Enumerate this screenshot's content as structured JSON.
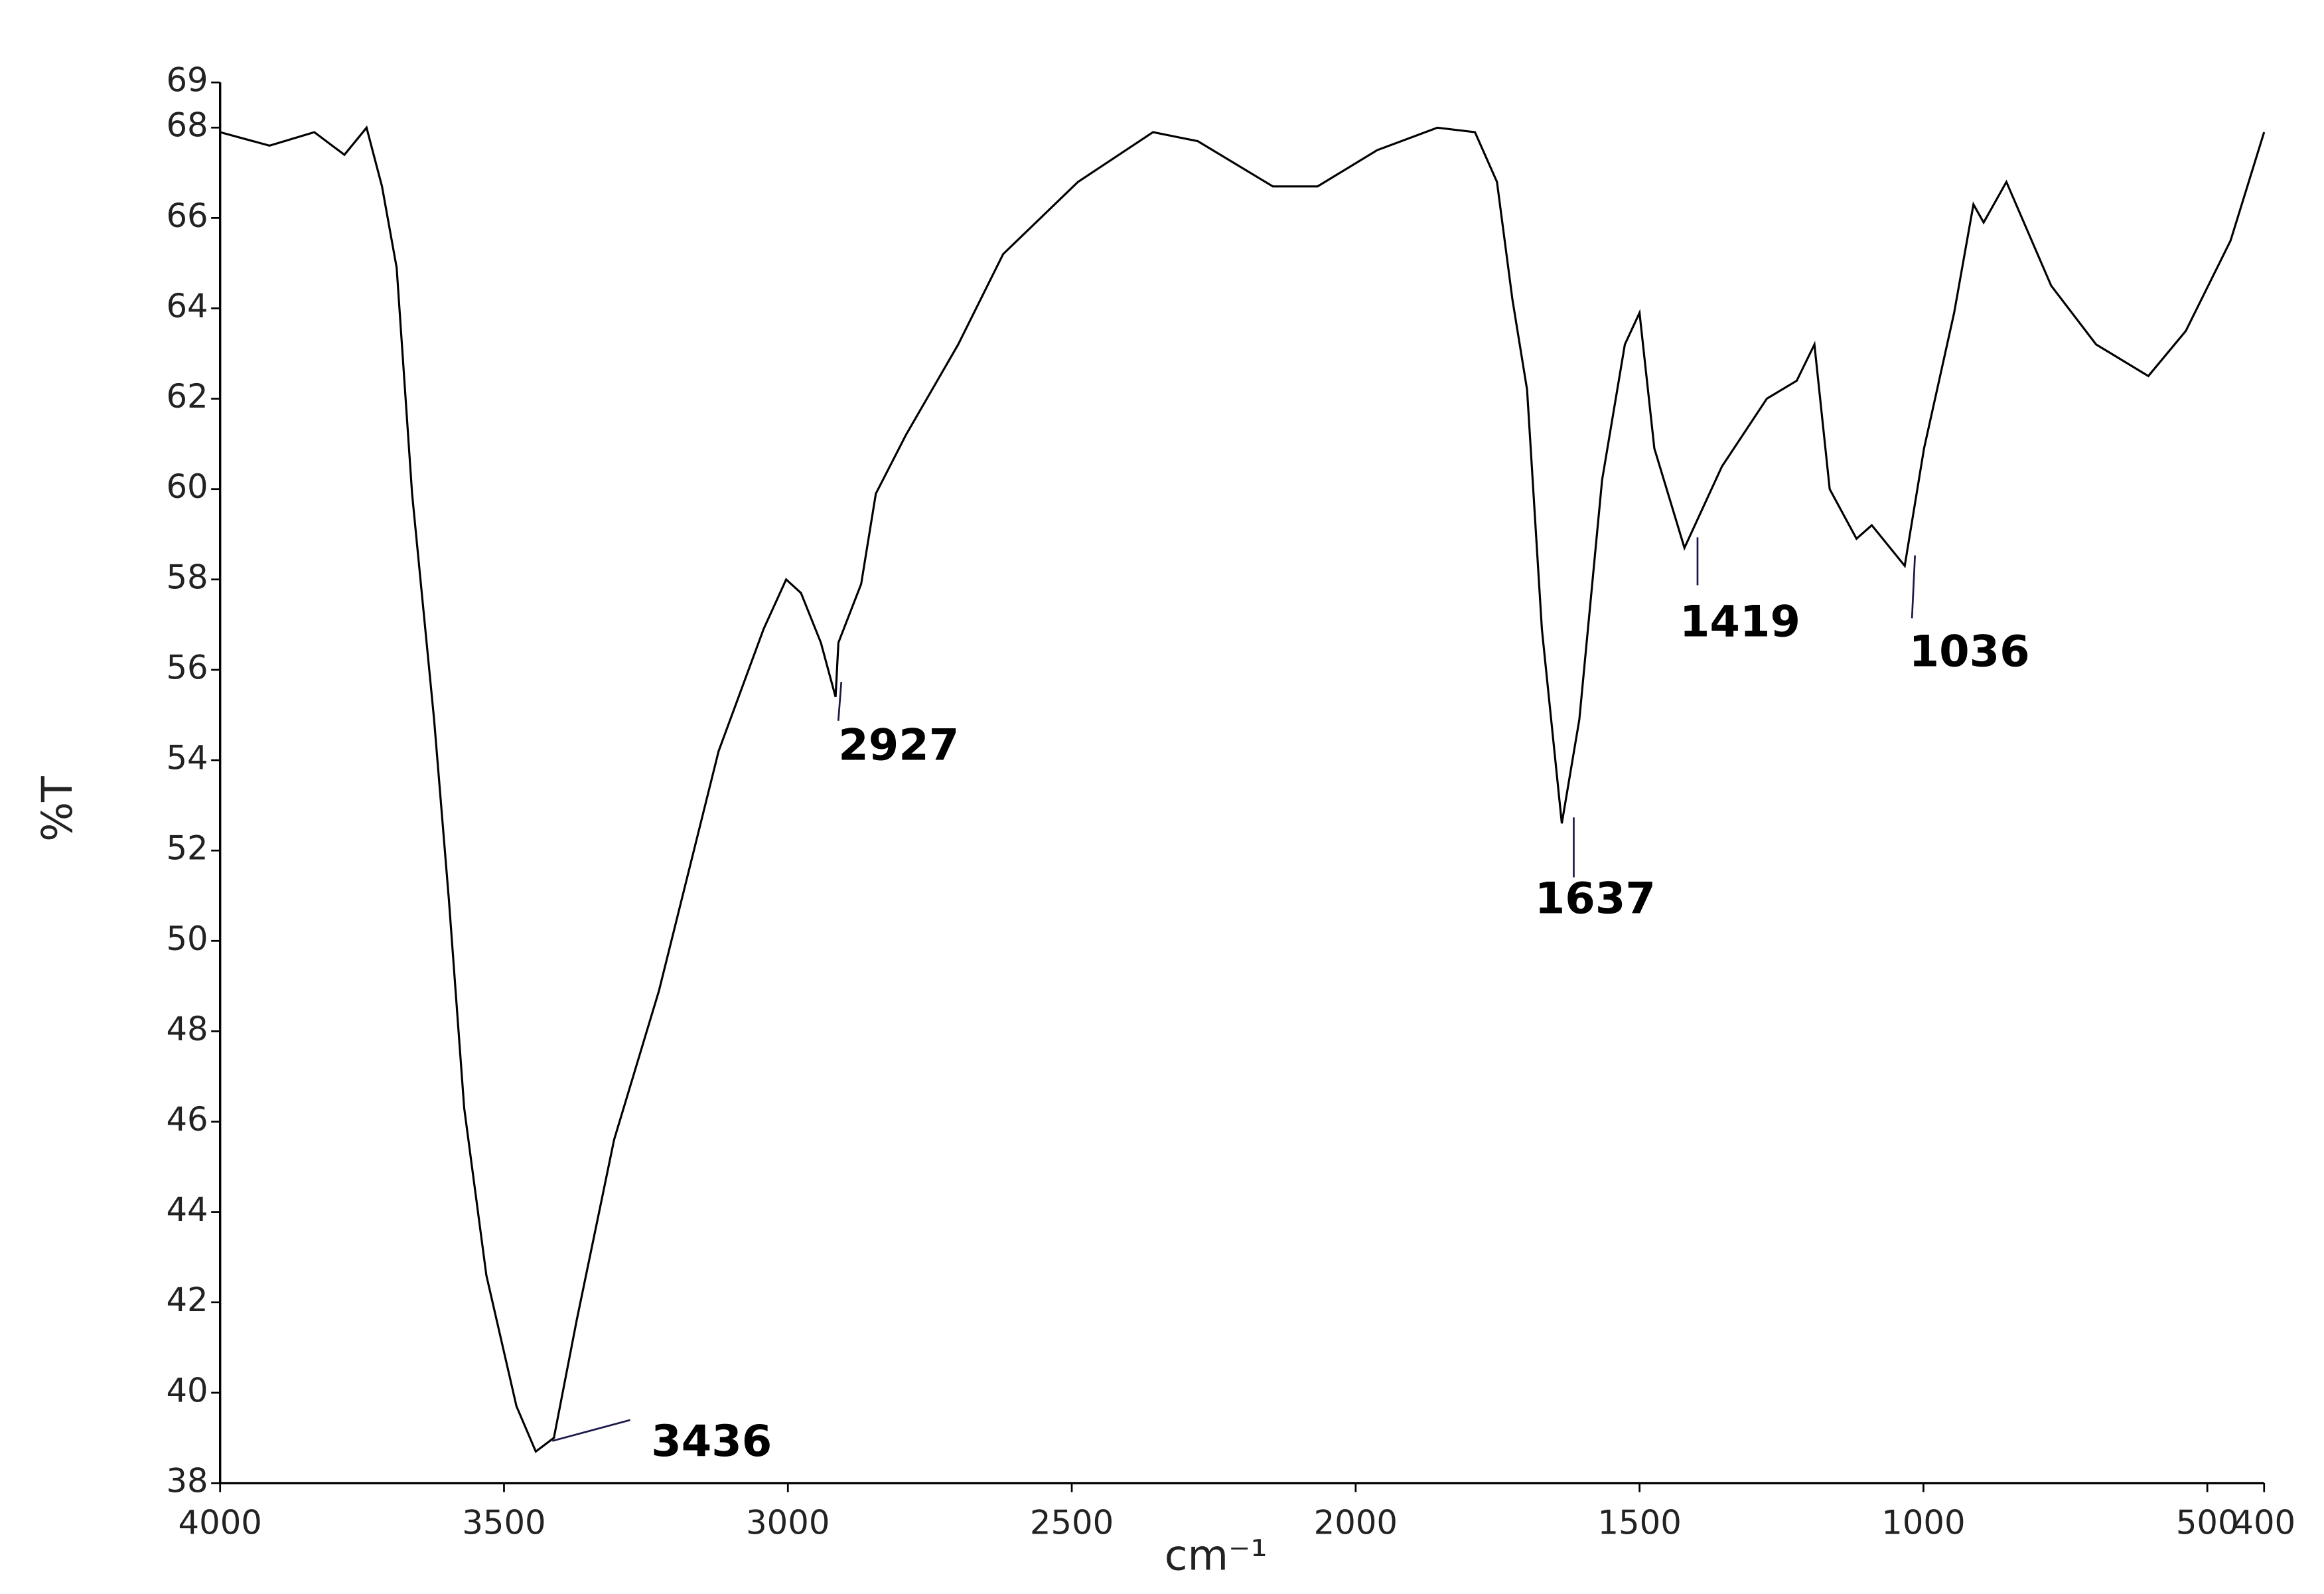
{
  "chart_data": {
    "type": "line",
    "xlabel": "cm⁻¹",
    "ylabel": "%T",
    "color": "#000000",
    "x": [
      4000,
      3913,
      3834,
      3781,
      3742,
      3715,
      3689,
      3662,
      3623,
      3597,
      3570,
      3531,
      3478,
      3444,
      3412,
      3372,
      3306,
      3227,
      3122,
      3043,
      3003,
      2977,
      2942,
      2916,
      2911,
      2871,
      2845,
      2792,
      2700,
      2621,
      2489,
      2357,
      2278,
      2146,
      2067,
      1962,
      1856,
      1790,
      1751,
      1724,
      1698,
      1672,
      1637,
      1606,
      1566,
      1526,
      1500,
      1474,
      1421,
      1355,
      1276,
      1223,
      1192,
      1165,
      1118,
      1091,
      1033,
      999,
      946,
      912,
      894,
      854,
      775,
      696,
      604,
      538,
      459,
      400
    ],
    "values": [
      67.9,
      67.6,
      67.9,
      67.4,
      68.0,
      66.7,
      64.9,
      59.9,
      54.9,
      50.9,
      46.3,
      42.6,
      39.7,
      38.7,
      39.0,
      41.6,
      45.6,
      48.9,
      54.2,
      56.9,
      58.0,
      57.7,
      56.6,
      55.4,
      56.6,
      57.9,
      59.9,
      61.2,
      63.2,
      65.2,
      66.8,
      67.9,
      67.7,
      66.7,
      66.7,
      67.5,
      68.0,
      67.9,
      66.8,
      64.2,
      62.2,
      56.9,
      52.6,
      54.9,
      60.2,
      63.2,
      63.9,
      60.9,
      58.7,
      60.5,
      62.0,
      62.4,
      63.2,
      60.0,
      58.9,
      59.2,
      58.3,
      60.9,
      63.9,
      66.3,
      65.9,
      66.8,
      64.5,
      63.2,
      62.5,
      63.5,
      65.5,
      67.9
    ],
    "xlim": [
      4000,
      400
    ],
    "xticks": [
      4000,
      3500,
      3000,
      2500,
      2000,
      1500,
      1000,
      500,
      400
    ],
    "ylim": [
      38,
      69
    ],
    "yticks": [
      38,
      40,
      42,
      44,
      46,
      48,
      50,
      52,
      54,
      56,
      58,
      60,
      62,
      64,
      66,
      68,
      69
    ],
    "annotations": [
      {
        "label": "3436",
        "x": 3436,
        "y": 38.8
      },
      {
        "label": "2927",
        "x": 2927,
        "y": 55.6
      },
      {
        "label": "1637",
        "x": 1637,
        "y": 52.6
      },
      {
        "label": "1419",
        "x": 1419,
        "y": 58.8
      },
      {
        "label": "1036",
        "x": 1036,
        "y": 58.4
      }
    ]
  }
}
